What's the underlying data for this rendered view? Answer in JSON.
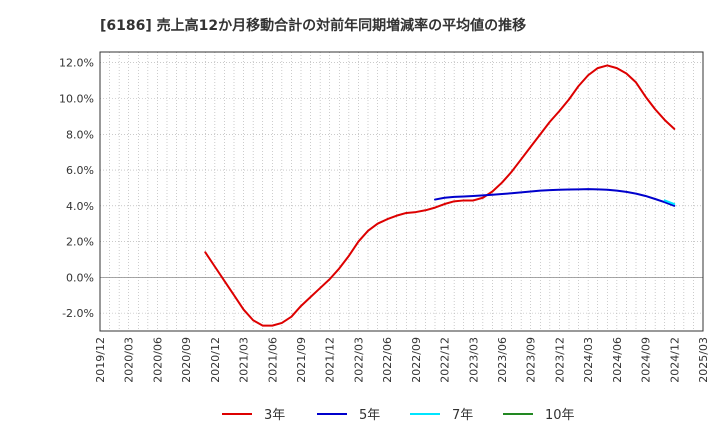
{
  "chart_data": {
    "type": "line",
    "title": "[6186]  売上高12か月移動合計の対前年同期増減率の平均値の推移",
    "xlabel": "",
    "ylabel": "",
    "ylim": [
      -3.0,
      12.6
    ],
    "yticks": [
      12.0,
      10.0,
      8.0,
      6.0,
      4.0,
      2.0,
      0.0,
      -2.0
    ],
    "ytick_labels": [
      "12.0%",
      "10.0%",
      "8.0%",
      "6.0%",
      "4.0%",
      "2.0%",
      "0.0%",
      "-2.0%"
    ],
    "xticks": [
      "2019/12",
      "2020/03",
      "2020/06",
      "2020/09",
      "2020/12",
      "2021/03",
      "2021/06",
      "2021/09",
      "2021/12",
      "2022/03",
      "2022/06",
      "2022/09",
      "2022/12",
      "2023/03",
      "2023/06",
      "2023/09",
      "2023/12",
      "2024/03",
      "2024/06",
      "2024/09",
      "2024/12",
      "2025/03"
    ],
    "grid": true,
    "legend_position": "bottom",
    "series": [
      {
        "name": "3年",
        "color": "#dd0000",
        "x": [
          "2020/11",
          "2020/12",
          "2021/01",
          "2021/02",
          "2021/03",
          "2021/04",
          "2021/05",
          "2021/06",
          "2021/07",
          "2021/08",
          "2021/09",
          "2021/10",
          "2021/11",
          "2021/12",
          "2022/01",
          "2022/02",
          "2022/03",
          "2022/04",
          "2022/05",
          "2022/06",
          "2022/07",
          "2022/08",
          "2022/09",
          "2022/10",
          "2022/11",
          "2022/12",
          "2023/01",
          "2023/02",
          "2023/03",
          "2023/04",
          "2023/05",
          "2023/06",
          "2023/07",
          "2023/08",
          "2023/09",
          "2023/10",
          "2023/11",
          "2023/12",
          "2024/01",
          "2024/02",
          "2024/03",
          "2024/04",
          "2024/05",
          "2024/06",
          "2024/07",
          "2024/08",
          "2024/09",
          "2024/10",
          "2024/11",
          "2024/12"
        ],
        "values": [
          1.4,
          0.6,
          -0.2,
          -1.0,
          -1.8,
          -2.4,
          -2.7,
          -2.7,
          -2.55,
          -2.2,
          -1.6,
          -1.1,
          -0.6,
          -0.1,
          0.5,
          1.2,
          2.0,
          2.6,
          3.0,
          3.25,
          3.45,
          3.6,
          3.65,
          3.75,
          3.9,
          4.1,
          4.25,
          4.3,
          4.3,
          4.45,
          4.8,
          5.3,
          5.9,
          6.6,
          7.3,
          8.0,
          8.7,
          9.3,
          9.95,
          10.7,
          11.3,
          11.7,
          11.85,
          11.7,
          11.4,
          10.9,
          10.1,
          9.4,
          8.8,
          8.3
        ]
      },
      {
        "name": "5年",
        "color": "#0000cc",
        "x": [
          "2022/11",
          "2022/12",
          "2023/01",
          "2023/02",
          "2023/03",
          "2023/04",
          "2023/05",
          "2023/06",
          "2023/07",
          "2023/08",
          "2023/09",
          "2023/10",
          "2023/11",
          "2023/12",
          "2024/01",
          "2024/02",
          "2024/03",
          "2024/04",
          "2024/05",
          "2024/06",
          "2024/07",
          "2024/08",
          "2024/09",
          "2024/10",
          "2024/11",
          "2024/12"
        ],
        "values": [
          4.35,
          4.45,
          4.5,
          4.52,
          4.55,
          4.58,
          4.62,
          4.66,
          4.7,
          4.75,
          4.8,
          4.85,
          4.88,
          4.9,
          4.91,
          4.92,
          4.93,
          4.92,
          4.9,
          4.85,
          4.78,
          4.68,
          4.55,
          4.38,
          4.2,
          4.0
        ]
      },
      {
        "name": "7年",
        "color": "#00e5ff",
        "x": [
          "2024/11",
          "2024/12"
        ],
        "values": [
          4.3,
          4.1
        ]
      },
      {
        "name": "10年",
        "color": "#228822",
        "x": [],
        "values": []
      }
    ]
  }
}
